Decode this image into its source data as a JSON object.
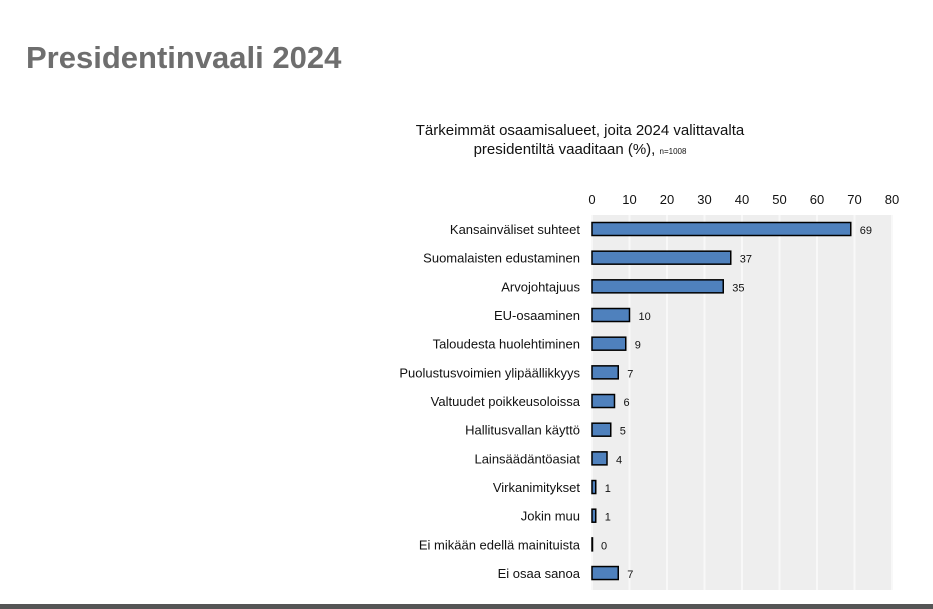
{
  "page_title": "Presidentinvaali 2024",
  "chart_data": {
    "type": "bar",
    "orientation": "horizontal",
    "title_line1": "Tärkeimmät osaamisalueet, joita 2024 valittavalta",
    "title_line2": "presidentiltä vaaditaan (%),",
    "sample_note": "n=1008",
    "categories": [
      "Kansainväliset suhteet",
      "Suomalaisten edustaminen",
      "Arvojohtajuus",
      "EU-osaaminen",
      "Taloudesta huolehtiminen",
      "Puolustusvoimien ylipäällikkyys",
      "Valtuudet poikkeusoloissa",
      "Hallitusvallan käyttö",
      "Lainsäädäntöasiat",
      "Virkanimitykset",
      "Jokin muu",
      "Ei mikään edellä mainituista",
      "Ei osaa sanoa"
    ],
    "values": [
      69,
      37,
      35,
      10,
      9,
      7,
      6,
      5,
      4,
      1,
      1,
      0,
      7
    ],
    "xlim": [
      0,
      80
    ],
    "xticks": [
      0,
      10,
      20,
      30,
      40,
      50,
      60,
      70,
      80
    ],
    "axis_position": "top",
    "bar_color": "#4f81bd"
  }
}
